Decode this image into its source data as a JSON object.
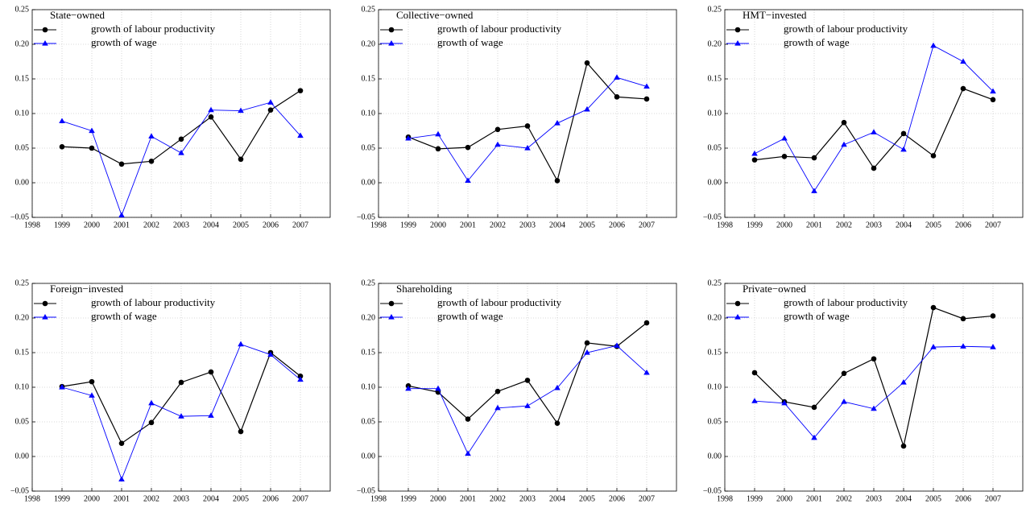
{
  "chart_data": [
    {
      "type": "line",
      "title": "State−owned",
      "x": [
        1999,
        2000,
        2001,
        2002,
        2003,
        2004,
        2005,
        2006,
        2007
      ],
      "series": [
        {
          "name": "growth of labour productivity",
          "color": "#000000",
          "marker": "circle",
          "values": [
            0.052,
            0.05,
            0.027,
            0.031,
            0.063,
            0.095,
            0.034,
            0.105,
            0.133
          ]
        },
        {
          "name": "growth of wage",
          "color": "#0000ff",
          "marker": "triangle",
          "values": [
            0.089,
            0.075,
            -0.047,
            0.067,
            0.043,
            0.105,
            0.104,
            0.116,
            0.068
          ]
        }
      ],
      "xlim": [
        1998,
        2008
      ],
      "xticks": [
        1998,
        1999,
        2000,
        2001,
        2002,
        2003,
        2004,
        2005,
        2006,
        2007
      ],
      "ylim": [
        -0.05,
        0.25
      ],
      "yticks": [
        {
          "value": -0.05,
          "label": "−0.05"
        },
        {
          "value": 0,
          "label": "0.00"
        },
        0.05,
        {
          "value": 0.1,
          "label": "0.10"
        },
        0.15,
        {
          "value": 0.2,
          "label": "0.20"
        },
        0.25
      ],
      "grid": true,
      "legend": "upper left"
    },
    {
      "type": "line",
      "title": "Collective−owned",
      "x": [
        1999,
        2000,
        2001,
        2002,
        2003,
        2004,
        2005,
        2006,
        2007
      ],
      "series": [
        {
          "name": "growth of labour productivity",
          "color": "#000000",
          "marker": "circle",
          "values": [
            0.066,
            0.049,
            0.051,
            0.077,
            0.082,
            0.003,
            0.173,
            0.124,
            0.121
          ]
        },
        {
          "name": "growth of wage",
          "color": "#0000ff",
          "marker": "triangle",
          "values": [
            0.064,
            0.07,
            0.003,
            0.055,
            0.05,
            0.086,
            0.106,
            0.152,
            0.139
          ]
        }
      ],
      "xlim": [
        1998,
        2008
      ],
      "xticks": [
        1998,
        1999,
        2000,
        2001,
        2002,
        2003,
        2004,
        2005,
        2006,
        2007
      ],
      "ylim": [
        -0.05,
        0.25
      ],
      "yticks": [
        {
          "value": -0.05,
          "label": "−0.05"
        },
        {
          "value": 0,
          "label": "0.00"
        },
        0.05,
        {
          "value": 0.1,
          "label": "0.10"
        },
        0.15,
        {
          "value": 0.2,
          "label": "0.20"
        },
        0.25
      ],
      "grid": true,
      "legend": "upper left"
    },
    {
      "type": "line",
      "title": "HMT−invested",
      "x": [
        1999,
        2000,
        2001,
        2002,
        2003,
        2004,
        2005,
        2006,
        2007
      ],
      "series": [
        {
          "name": "growth of labour productivity",
          "color": "#000000",
          "marker": "circle",
          "values": [
            0.033,
            0.038,
            0.036,
            0.087,
            0.021,
            0.071,
            0.039,
            0.136,
            0.12
          ]
        },
        {
          "name": "growth of wage",
          "color": "#0000ff",
          "marker": "triangle",
          "values": [
            0.042,
            0.064,
            -0.012,
            0.055,
            0.073,
            0.048,
            0.198,
            0.175,
            0.132
          ]
        }
      ],
      "xlim": [
        1998,
        2008
      ],
      "xticks": [
        1998,
        1999,
        2000,
        2001,
        2002,
        2003,
        2004,
        2005,
        2006,
        2007
      ],
      "ylim": [
        -0.05,
        0.25
      ],
      "yticks": [
        {
          "value": -0.05,
          "label": "−0.05"
        },
        {
          "value": 0,
          "label": "0.00"
        },
        0.05,
        {
          "value": 0.1,
          "label": "0.10"
        },
        0.15,
        {
          "value": 0.2,
          "label": "0.20"
        },
        0.25
      ],
      "grid": true,
      "legend": "upper left"
    },
    {
      "type": "line",
      "title": "Foreign−invested",
      "x": [
        1999,
        2000,
        2001,
        2002,
        2003,
        2004,
        2005,
        2006,
        2007
      ],
      "series": [
        {
          "name": "growth of labour productivity",
          "color": "#000000",
          "marker": "circle",
          "values": [
            0.101,
            0.108,
            0.019,
            0.049,
            0.107,
            0.122,
            0.036,
            0.15,
            0.116
          ]
        },
        {
          "name": "growth of wage",
          "color": "#0000ff",
          "marker": "triangle",
          "values": [
            0.1,
            0.088,
            -0.033,
            0.077,
            0.058,
            0.059,
            0.162,
            0.147,
            0.111
          ]
        }
      ],
      "xlim": [
        1998,
        2008
      ],
      "xticks": [
        1998,
        1999,
        2000,
        2001,
        2002,
        2003,
        2004,
        2005,
        2006,
        2007
      ],
      "ylim": [
        -0.05,
        0.25
      ],
      "yticks": [
        {
          "value": -0.05,
          "label": "−0.05"
        },
        {
          "value": 0,
          "label": "0.00"
        },
        0.05,
        {
          "value": 0.1,
          "label": "0.10"
        },
        0.15,
        {
          "value": 0.2,
          "label": "0.20"
        },
        0.25
      ],
      "grid": true,
      "legend": "upper left"
    },
    {
      "type": "line",
      "title": "Shareholding",
      "x": [
        1999,
        2000,
        2001,
        2002,
        2003,
        2004,
        2005,
        2006,
        2007
      ],
      "series": [
        {
          "name": "growth of labour productivity",
          "color": "#000000",
          "marker": "circle",
          "values": [
            0.102,
            0.093,
            0.054,
            0.094,
            0.11,
            0.048,
            0.164,
            0.159,
            0.193
          ]
        },
        {
          "name": "growth of wage",
          "color": "#0000ff",
          "marker": "triangle",
          "values": [
            0.098,
            0.098,
            0.004,
            0.07,
            0.073,
            0.099,
            0.15,
            0.16,
            0.121
          ]
        }
      ],
      "xlim": [
        1998,
        2008
      ],
      "xticks": [
        1998,
        1999,
        2000,
        2001,
        2002,
        2003,
        2004,
        2005,
        2006,
        2007
      ],
      "ylim": [
        -0.05,
        0.25
      ],
      "yticks": [
        {
          "value": -0.05,
          "label": "−0.05"
        },
        {
          "value": 0,
          "label": "0.00"
        },
        0.05,
        {
          "value": 0.1,
          "label": "0.10"
        },
        0.15,
        {
          "value": 0.2,
          "label": "0.20"
        },
        0.25
      ],
      "grid": true,
      "legend": "upper left"
    },
    {
      "type": "line",
      "title": "Private−owned",
      "x": [
        1999,
        2000,
        2001,
        2002,
        2003,
        2004,
        2005,
        2006,
        2007
      ],
      "series": [
        {
          "name": "growth of labour productivity",
          "color": "#000000",
          "marker": "circle",
          "values": [
            0.121,
            0.079,
            0.071,
            0.12,
            0.141,
            0.015,
            0.215,
            0.199,
            0.203
          ]
        },
        {
          "name": "growth of wage",
          "color": "#0000ff",
          "marker": "triangle",
          "values": [
            0.08,
            0.077,
            0.027,
            0.079,
            0.069,
            0.107,
            0.158,
            0.159,
            0.158
          ]
        }
      ],
      "xlim": [
        1998,
        2008
      ],
      "xticks": [
        1998,
        1999,
        2000,
        2001,
        2002,
        2003,
        2004,
        2005,
        2006,
        2007
      ],
      "ylim": [
        -0.05,
        0.25
      ],
      "yticks": [
        {
          "value": -0.05,
          "label": "−0.05"
        },
        {
          "value": 0,
          "label": "0.00"
        },
        0.05,
        {
          "value": 0.1,
          "label": "0.10"
        },
        0.15,
        {
          "value": 0.2,
          "label": "0.20"
        },
        0.25
      ],
      "grid": true,
      "legend": "upper left"
    }
  ]
}
